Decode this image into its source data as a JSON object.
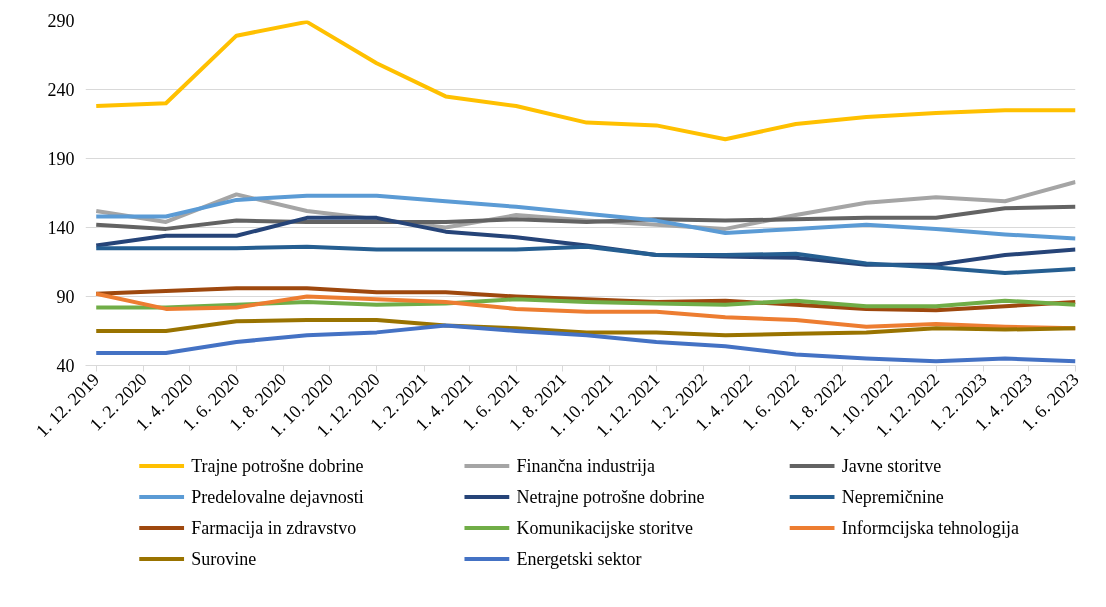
{
  "chart_data": {
    "type": "line",
    "x": [
      "2019-12-01",
      "2020-03-01",
      "2020-06-01",
      "2020-09-01",
      "2020-12-01",
      "2021-03-01",
      "2021-06-01",
      "2021-09-01",
      "2021-12-01",
      "2022-03-01",
      "2022-06-01",
      "2022-09-01",
      "2022-12-01",
      "2023-03-01",
      "2023-06-01"
    ],
    "series": [
      {
        "name": "Trajne potrošne dobrine",
        "color": "#ffc000",
        "values": [
          228,
          230,
          279,
          289,
          259,
          235,
          228,
          216,
          214,
          204,
          215,
          220,
          223,
          225,
          225
        ]
      },
      {
        "name": "Finančna industrija",
        "color": "#a5a5a5",
        "values": [
          152,
          144,
          164,
          152,
          146,
          140,
          149,
          145,
          142,
          139,
          149,
          158,
          162,
          159,
          173
        ]
      },
      {
        "name": "Javne storitve",
        "color": "#636363",
        "values": [
          142,
          139,
          145,
          144,
          144,
          144,
          146,
          144,
          146,
          145,
          146,
          147,
          147,
          154,
          155
        ]
      },
      {
        "name": "Predelovalne dejavnosti",
        "color": "#5b9bd5",
        "values": [
          148,
          148,
          160,
          163,
          163,
          159,
          155,
          150,
          145,
          136,
          139,
          142,
          139,
          135,
          132
        ]
      },
      {
        "name": "Netrajne potrošne dobrine",
        "color": "#264478",
        "values": [
          127,
          134,
          134,
          147,
          147,
          137,
          133,
          127,
          120,
          119,
          118,
          113,
          113,
          120,
          124
        ]
      },
      {
        "name": "Nepremičnine",
        "color": "#255e91",
        "values": [
          125,
          125,
          125,
          126,
          124,
          124,
          124,
          126,
          120,
          120,
          121,
          114,
          111,
          107,
          110
        ]
      },
      {
        "name": "Farmacija in zdravstvo",
        "color": "#9e480e",
        "values": [
          92,
          94,
          96,
          96,
          93,
          93,
          90,
          88,
          86,
          87,
          84,
          81,
          80,
          83,
          86
        ]
      },
      {
        "name": "Komunikacijske storitve",
        "color": "#70ad47",
        "values": [
          82,
          82,
          84,
          86,
          84,
          85,
          88,
          86,
          85,
          84,
          87,
          83,
          83,
          87,
          84
        ]
      },
      {
        "name": "Informcijska tehnologija",
        "color": "#ed7d31",
        "values": [
          92,
          81,
          82,
          90,
          88,
          86,
          81,
          79,
          79,
          75,
          73,
          68,
          70,
          68,
          67
        ]
      },
      {
        "name": "Surovine",
        "color": "#997300",
        "values": [
          65,
          65,
          72,
          73,
          73,
          69,
          67,
          64,
          64,
          62,
          63,
          64,
          67,
          66,
          67
        ]
      },
      {
        "name": "Energetski sektor",
        "color": "#4472c4",
        "values": [
          49,
          49,
          57,
          62,
          64,
          69,
          65,
          62,
          57,
          54,
          48,
          45,
          43,
          45,
          43
        ]
      }
    ],
    "xlim": [
      "2019-11-17",
      "2023-06-01"
    ],
    "xticks": [
      {
        "value": "2019-12-01",
        "label": "1. 12. 2019"
      },
      {
        "value": "2020-02-01",
        "label": "1. 2. 2020"
      },
      {
        "value": "2020-04-01",
        "label": "1. 4. 2020"
      },
      {
        "value": "2020-06-01",
        "label": "1. 6. 2020"
      },
      {
        "value": "2020-08-01",
        "label": "1. 8. 2020"
      },
      {
        "value": "2020-10-01",
        "label": "1. 10. 2020"
      },
      {
        "value": "2020-12-01",
        "label": "1. 12. 2020"
      },
      {
        "value": "2021-02-01",
        "label": "1. 2. 2021"
      },
      {
        "value": "2021-04-01",
        "label": "1. 4. 2021"
      },
      {
        "value": "2021-06-01",
        "label": "1. 6. 2021"
      },
      {
        "value": "2021-08-01",
        "label": "1. 8. 2021"
      },
      {
        "value": "2021-10-01",
        "label": "1. 10. 2021"
      },
      {
        "value": "2021-12-01",
        "label": "1. 12. 2021"
      },
      {
        "value": "2022-02-01",
        "label": "1. 2. 2022"
      },
      {
        "value": "2022-04-01",
        "label": "1. 4. 2022"
      },
      {
        "value": "2022-06-01",
        "label": "1. 6. 2022"
      },
      {
        "value": "2022-08-01",
        "label": "1. 8. 2022"
      },
      {
        "value": "2022-10-01",
        "label": "1. 10. 2022"
      },
      {
        "value": "2022-12-01",
        "label": "1. 12. 2022"
      },
      {
        "value": "2023-02-01",
        "label": "1. 2. 2023"
      },
      {
        "value": "2023-04-01",
        "label": "1. 4. 2023"
      },
      {
        "value": "2023-06-01",
        "label": "1. 6. 2023"
      }
    ],
    "ylim": [
      40,
      290
    ],
    "yticks": [
      40,
      90,
      140,
      190,
      240,
      290
    ],
    "grid": "y",
    "legend": "bottom",
    "marker": "none",
    "line_style": "solid"
  }
}
